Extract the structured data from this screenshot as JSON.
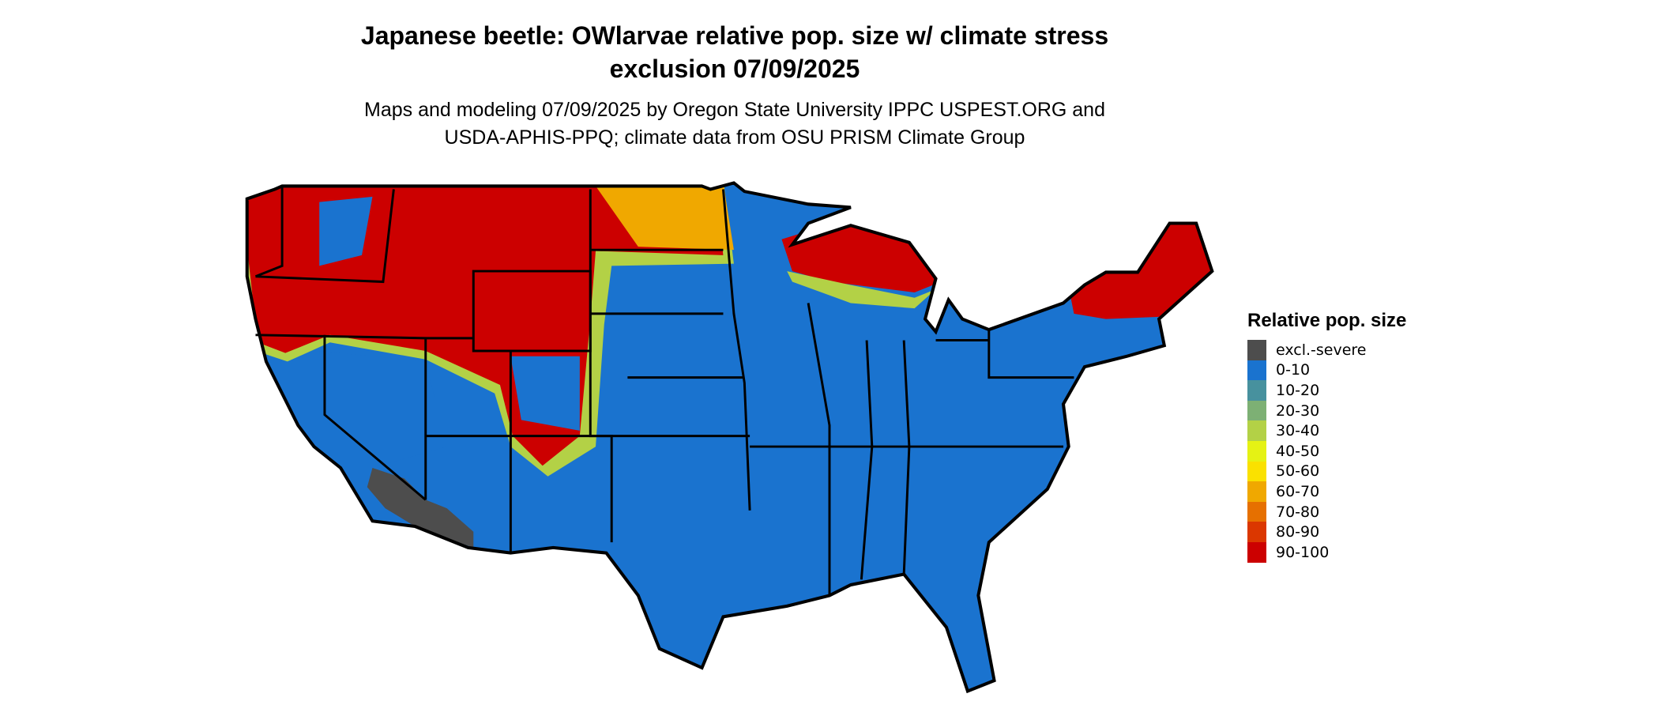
{
  "title": {
    "line1": "Japanese beetle: OWlarvae relative pop. size w/ climate stress",
    "line2": "exclusion 07/09/2025"
  },
  "subtitle": {
    "line1": "Maps and modeling 07/09/2025 by Oregon State University IPPC USPEST.ORG and",
    "line2": "USDA-APHIS-PPQ; climate data from OSU PRISM Climate Group"
  },
  "legend": {
    "title": "Relative pop. size",
    "items": [
      {
        "label": "excl.-severe",
        "color": "#4d4d4d"
      },
      {
        "label": "0-10",
        "color": "#1a73cf"
      },
      {
        "label": "10-20",
        "color": "#47919e"
      },
      {
        "label": "20-30",
        "color": "#7db074"
      },
      {
        "label": "30-40",
        "color": "#b3d146"
      },
      {
        "label": "40-50",
        "color": "#e5f214"
      },
      {
        "label": "50-60",
        "color": "#fae100"
      },
      {
        "label": "60-70",
        "color": "#f0a800"
      },
      {
        "label": "70-80",
        "color": "#e67000"
      },
      {
        "label": "80-90",
        "color": "#db3700"
      },
      {
        "label": "90-100",
        "color": "#cc0000"
      }
    ]
  },
  "map": {
    "region": "Contiguous United States",
    "base_color": "#1a73cf",
    "high_color": "#cc0000",
    "excluded_color": "#4d4d4d",
    "border_color": "#000000"
  }
}
